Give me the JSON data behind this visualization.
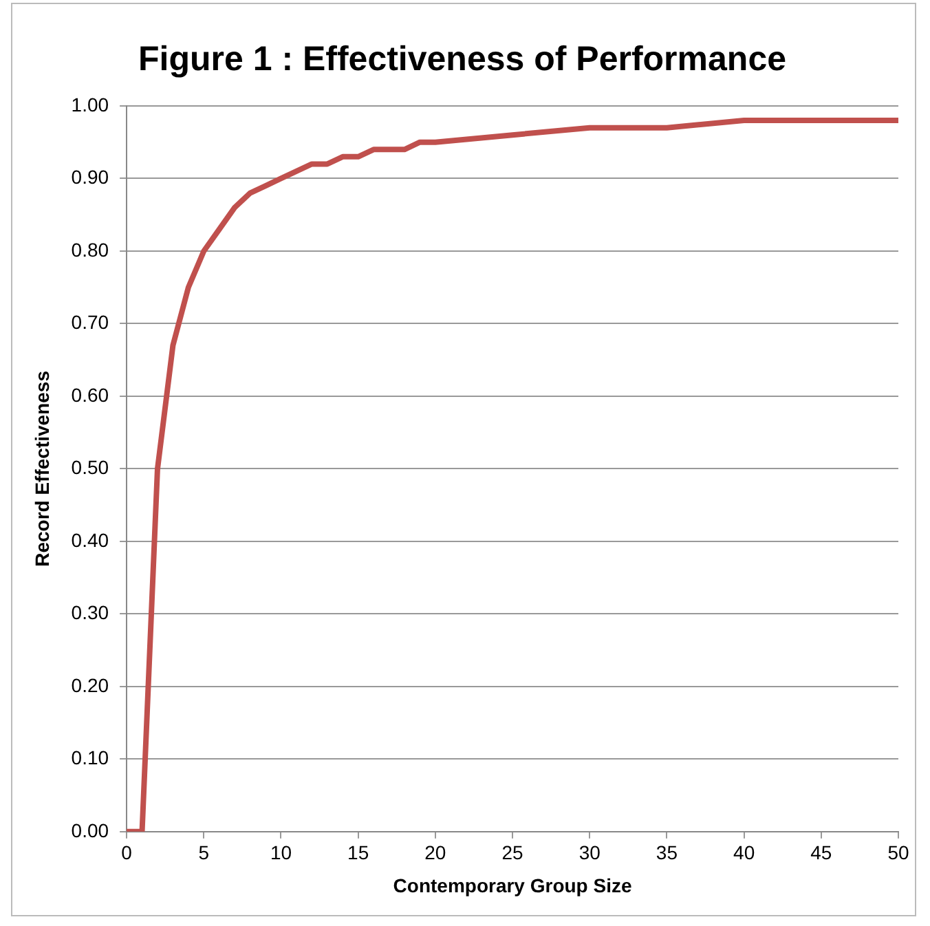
{
  "chart_data": {
    "type": "line",
    "title": "Figure 1 : Effectiveness of Performance",
    "xlabel": "Contemporary Group Size",
    "ylabel": "Record Effectiveness",
    "x": [
      0,
      1,
      2,
      3,
      4,
      5,
      6,
      7,
      8,
      9,
      10,
      11,
      12,
      13,
      14,
      15,
      16,
      17,
      18,
      19,
      20,
      25,
      30,
      35,
      40,
      45,
      50
    ],
    "series": [
      {
        "color": "#c0504d",
        "values": [
          0,
          0,
          0.5,
          0.67,
          0.75,
          0.8,
          0.83,
          0.86,
          0.88,
          0.89,
          0.9,
          0.91,
          0.92,
          0.92,
          0.93,
          0.93,
          0.94,
          0.94,
          0.94,
          0.95,
          0.95,
          0.96,
          0.97,
          0.97,
          0.98,
          0.98,
          0.98
        ]
      }
    ],
    "xlim": [
      0,
      50
    ],
    "xticks": [
      0,
      5,
      10,
      15,
      20,
      25,
      30,
      35,
      40,
      45,
      50
    ],
    "ylim": [
      0,
      1
    ],
    "yticks": [
      {
        "value": 0,
        "label": "0.00"
      },
      {
        "value": 0.1,
        "label": "0.10"
      },
      {
        "value": 0.2,
        "label": "0.20"
      },
      {
        "value": 0.3,
        "label": "0.30"
      },
      {
        "value": 0.4,
        "label": "0.40"
      },
      {
        "value": 0.5,
        "label": "0.50"
      },
      {
        "value": 0.6,
        "label": "0.60"
      },
      {
        "value": 0.7,
        "label": "0.70"
      },
      {
        "value": 0.8,
        "label": "0.80"
      },
      {
        "value": 0.9,
        "label": "0.90"
      },
      {
        "value": 1,
        "label": "1.00"
      }
    ],
    "grid": "y",
    "legend": false,
    "marker": "none",
    "line_style": "solid"
  }
}
